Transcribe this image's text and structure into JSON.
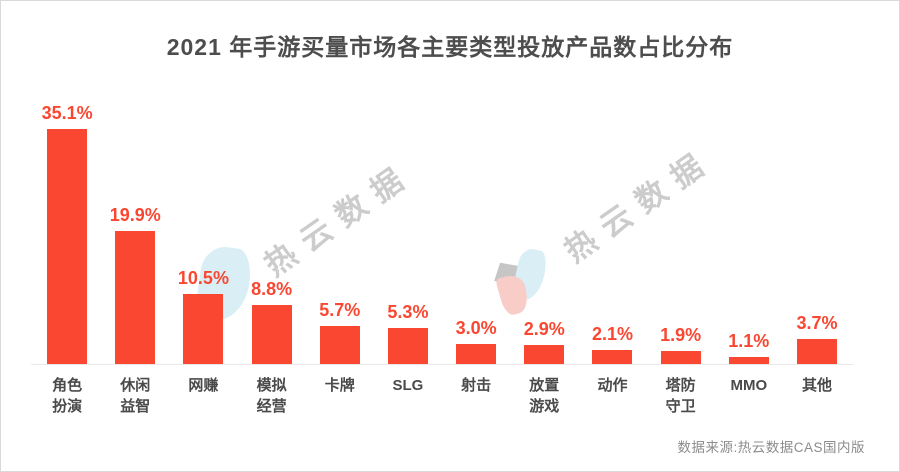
{
  "title": "2021 年手游买量市场各主要类型投放产品数占比分布",
  "chart_data": {
    "type": "bar",
    "title": "2021 年手游买量市场各主要类型投放产品数占比分布",
    "categories": [
      "角色扮演",
      "休闲益智",
      "网赚",
      "模拟经营",
      "卡牌",
      "SLG",
      "射击",
      "放置游戏",
      "动作",
      "塔防守卫",
      "MMO",
      "其他"
    ],
    "categories_line1": [
      "角色",
      "休闲",
      "网赚",
      "模拟",
      "卡牌",
      "SLG",
      "射击",
      "放置",
      "动作",
      "塔防",
      "MMO",
      "其他"
    ],
    "categories_line2": [
      "扮演",
      "益智",
      "",
      "经营",
      "",
      "",
      "",
      "游戏",
      "",
      "守卫",
      "",
      ""
    ],
    "values": [
      35.1,
      19.9,
      10.5,
      8.8,
      5.7,
      5.3,
      3.0,
      2.9,
      2.1,
      1.9,
      1.1,
      3.7
    ],
    "value_labels": [
      "35.1%",
      "19.9%",
      "10.5%",
      "8.8%",
      "5.7%",
      "5.3%",
      "3.0%",
      "2.9%",
      "2.1%",
      "1.9%",
      "1.1%",
      "3.7%"
    ],
    "xlabel": "",
    "ylabel": "",
    "ylim": [
      0,
      37
    ],
    "grid": "off",
    "legend": "none",
    "bar_color": "#f94732",
    "value_label_color": "#f94732",
    "baseline_color": "#eaeaea"
  },
  "watermark": {
    "text": "热云数据",
    "text_color": "#cccccc",
    "logo_colors": {
      "cyan": "#daeef6",
      "gray": "#c6c6c6",
      "pink": "#f8ccc7"
    }
  },
  "footer": {
    "source": "数据来源:热云数据CAS国内版"
  },
  "colors": {
    "title": "#4d4d4d",
    "category_label": "#4a4a4a",
    "source_text": "#8c8c8c",
    "border": "#d9d9d9",
    "background": "#ffffff"
  }
}
